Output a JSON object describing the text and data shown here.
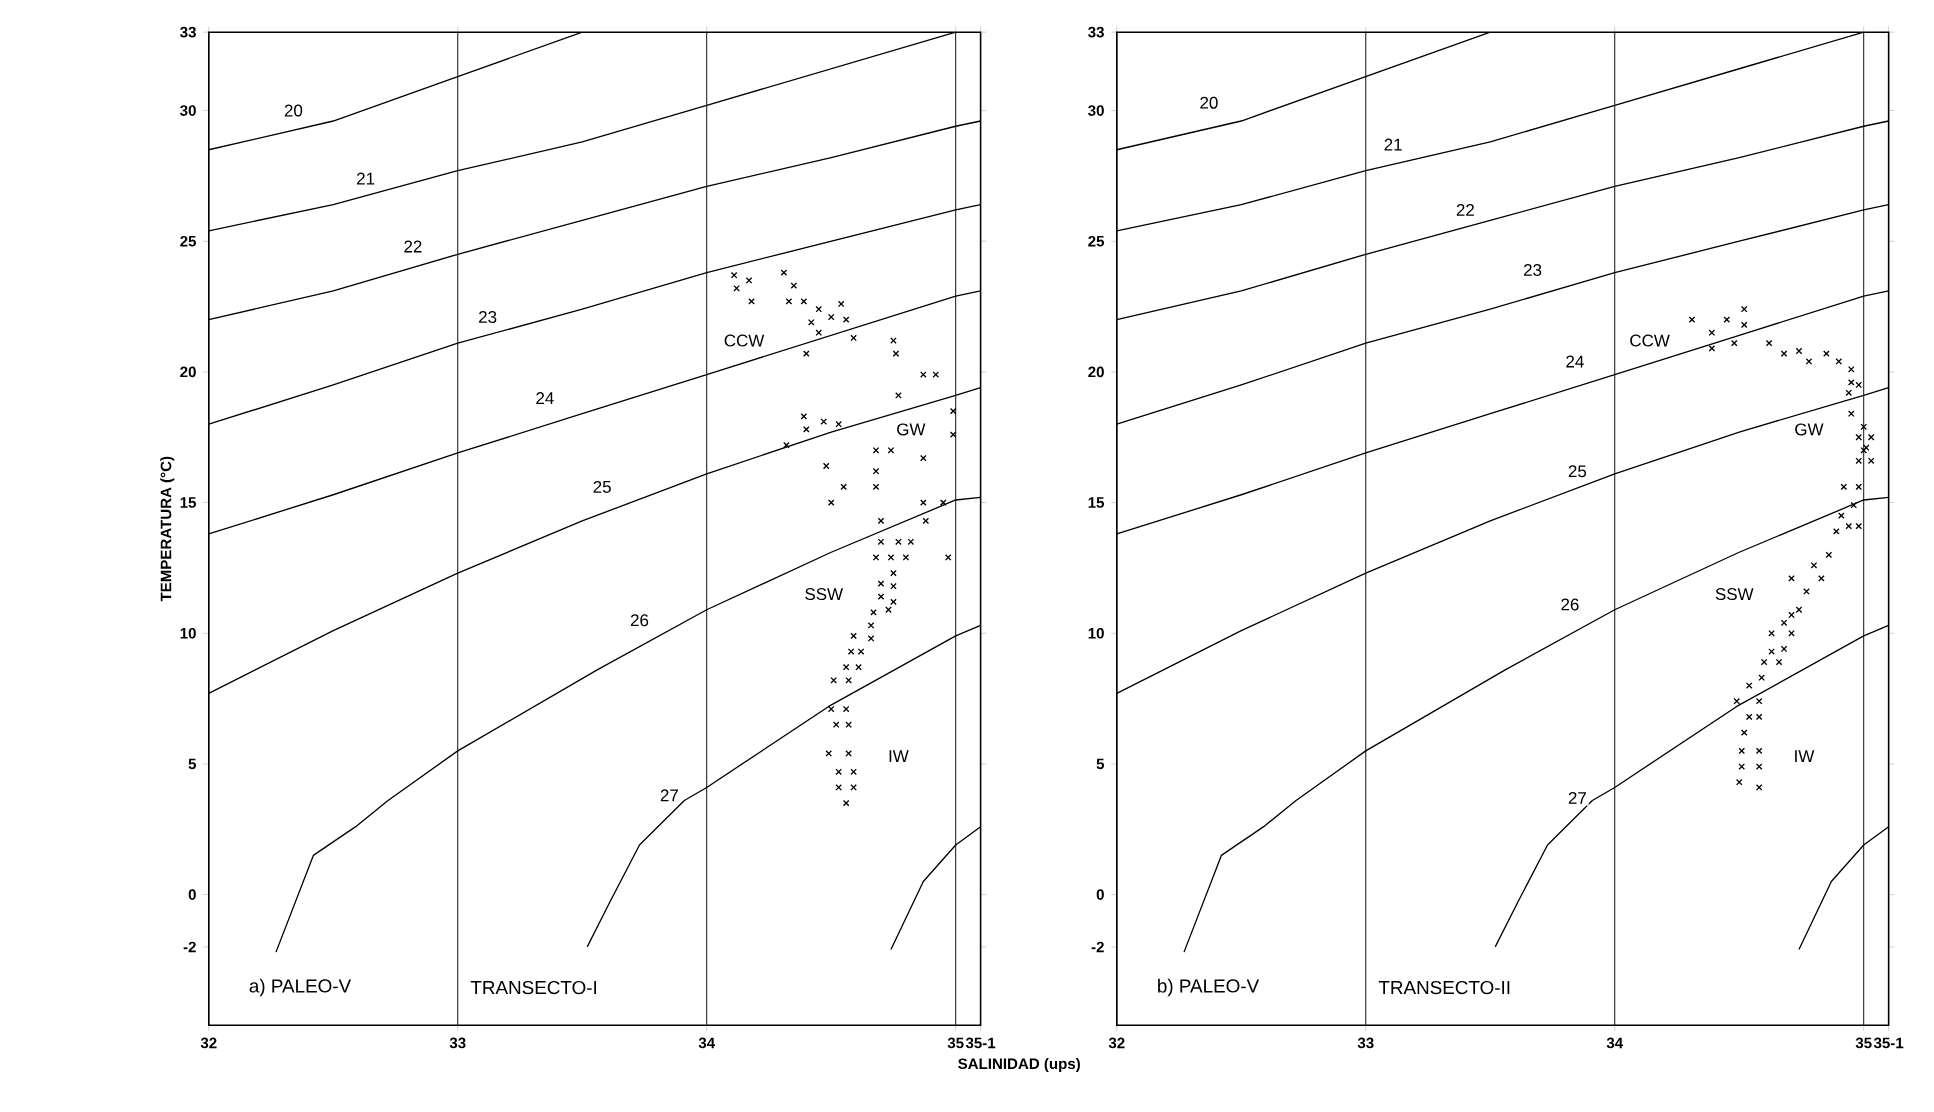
{
  "chart_data": [
    {
      "type": "scatter",
      "xlabel": "SALINIDAD (ups)",
      "ylabel": "TEMPERATURA (°C)",
      "xlim": [
        32,
        35.1
      ],
      "ylim": [
        -5,
        33
      ],
      "xticks": [
        32,
        33,
        34,
        35,
        {
          "value": 35.1,
          "label": "35-1"
        }
      ],
      "yticks": [
        -2,
        0,
        5,
        10,
        15,
        20,
        25,
        30,
        33
      ],
      "grid": "x",
      "series": [
        {
          "type": "line",
          "marker": "none",
          "color": "#000000",
          "x": [
            32,
            32.5,
            33,
            33.5
          ],
          "values": [
            28.5,
            29.6,
            31.3,
            33
          ]
        },
        {
          "type": "line",
          "marker": "none",
          "color": "#000000",
          "x": [
            32,
            32.5,
            33,
            33.5,
            34,
            34.5,
            35
          ],
          "values": [
            25.4,
            26.4,
            27.7,
            28.8,
            30.2,
            31.6,
            33
          ]
        },
        {
          "type": "line",
          "marker": "none",
          "color": "#000000",
          "x": [
            32,
            32.5,
            33,
            33.5,
            34,
            34.5,
            35,
            35.1
          ],
          "values": [
            22.0,
            23.1,
            24.5,
            25.8,
            27.1,
            28.2,
            29.4,
            29.6
          ]
        },
        {
          "type": "line",
          "marker": "none",
          "color": "#000000",
          "x": [
            32,
            32.5,
            33,
            33.5,
            34,
            34.5,
            35,
            35.1
          ],
          "values": [
            18.0,
            19.5,
            21.1,
            22.4,
            23.8,
            25.0,
            26.2,
            26.4
          ]
        },
        {
          "type": "line",
          "marker": "none",
          "color": "#000000",
          "x": [
            32,
            32.5,
            33,
            33.5,
            34,
            34.5,
            35,
            35.1
          ],
          "values": [
            13.8,
            15.3,
            16.9,
            18.4,
            19.9,
            21.4,
            22.9,
            23.1
          ]
        },
        {
          "type": "line",
          "marker": "none",
          "color": "#000000",
          "x": [
            32,
            32.5,
            33,
            33.5,
            34,
            34.5,
            35,
            35.1
          ],
          "values": [
            7.7,
            10.1,
            12.3,
            14.3,
            16.1,
            17.7,
            19.1,
            19.4
          ]
        },
        {
          "type": "line",
          "marker": "none",
          "color": "#000000",
          "x": [
            32.27,
            32.42,
            32.59,
            32.72,
            33,
            33.56,
            34,
            34.5,
            35,
            35.1
          ],
          "values": [
            -2.2,
            1.5,
            2.6,
            3.6,
            5.5,
            8.6,
            10.9,
            13.1,
            15.1,
            15.2
          ]
        },
        {
          "type": "line",
          "marker": "none",
          "color": "#000000",
          "x": [
            33.52,
            33.61,
            33.73,
            33.91,
            34,
            34.49,
            35,
            35.1
          ],
          "values": [
            -2.0,
            -0.3,
            1.9,
            3.6,
            4.1,
            7.2,
            9.9,
            10.3
          ]
        },
        {
          "type": "line",
          "marker": "none",
          "color": "#000000",
          "x": [
            34.74,
            34.87,
            35,
            35.1
          ],
          "values": [
            -2.1,
            0.5,
            1.9,
            2.6
          ]
        },
        {
          "marker": "cross",
          "color": "#000000",
          "x": [
            34.11,
            34.12,
            34.17,
            34.18,
            34.31,
            34.35,
            34.33,
            34.39,
            34.45,
            34.42,
            34.5,
            34.54,
            34.56,
            34.45,
            34.59,
            34.4,
            34.75,
            34.76,
            34.87,
            34.92,
            34.77,
            34.39,
            34.4,
            34.47,
            34.53,
            34.32,
            34.68,
            34.74,
            34.87,
            34.48,
            34.68,
            34.55,
            34.68,
            34.5,
            34.87,
            34.95,
            34.99,
            34.99,
            34.7,
            34.88,
            34.97,
            34.7,
            34.77,
            34.82,
            34.68,
            34.74,
            34.8,
            34.75,
            34.7,
            34.75,
            34.75,
            34.7,
            34.67,
            34.73,
            34.66,
            34.59,
            34.66,
            34.58,
            34.62,
            34.56,
            34.61,
            34.51,
            34.57,
            34.5,
            34.56,
            34.52,
            34.57,
            34.49,
            34.57,
            34.53,
            34.59,
            34.53,
            34.59,
            34.56
          ],
          "values": [
            23.7,
            23.2,
            23.5,
            22.7,
            23.8,
            23.3,
            22.7,
            22.7,
            22.4,
            21.9,
            22.1,
            22.6,
            22.0,
            21.5,
            21.3,
            20.7,
            21.2,
            20.7,
            19.9,
            19.9,
            19.1,
            18.3,
            17.8,
            18.1,
            18.0,
            17.2,
            17.0,
            17.0,
            16.7,
            16.4,
            16.2,
            15.6,
            15.6,
            15.0,
            15.0,
            15.0,
            18.5,
            17.6,
            14.3,
            14.3,
            12.9,
            13.5,
            13.5,
            13.5,
            12.9,
            12.9,
            12.9,
            12.3,
            11.9,
            11.8,
            11.2,
            11.4,
            10.8,
            10.9,
            10.3,
            9.9,
            9.8,
            9.3,
            9.3,
            8.7,
            8.7,
            8.2,
            8.2,
            7.1,
            7.1,
            6.5,
            6.5,
            5.4,
            5.4,
            4.7,
            4.7,
            4.1,
            4.1,
            3.5
          ]
        }
      ],
      "annotations": [
        {
          "text": "20",
          "x": 32.34,
          "y": 30.0
        },
        {
          "text": "21",
          "x": 32.63,
          "y": 27.4
        },
        {
          "text": "22",
          "x": 32.82,
          "y": 24.8
        },
        {
          "text": "23",
          "x": 33.12,
          "y": 22.1
        },
        {
          "text": "24",
          "x": 33.35,
          "y": 19.0
        },
        {
          "text": "25",
          "x": 33.58,
          "y": 15.6
        },
        {
          "text": "26",
          "x": 33.73,
          "y": 10.5
        },
        {
          "text": "27",
          "x": 33.85,
          "y": 3.8
        },
        {
          "text": "CCW",
          "x": 34.15,
          "y": 21.2
        },
        {
          "text": "GW",
          "x": 34.82,
          "y": 17.8
        },
        {
          "text": "SSW",
          "x": 34.47,
          "y": 11.5
        },
        {
          "text": "IW",
          "x": 34.77,
          "y": 5.3
        },
        "a) PALEO-V",
        "TRANSECTO-I"
      ]
    },
    {
      "type": "scatter",
      "xlim": [
        32,
        35.1
      ],
      "ylim": [
        -5,
        33
      ],
      "xticks": [
        32,
        33,
        34,
        35,
        {
          "value": 35.1,
          "label": "35-1"
        }
      ],
      "yticks": [
        -2,
        0,
        5,
        10,
        15,
        20,
        25,
        30,
        33
      ],
      "grid": "x",
      "series": [
        {
          "type": "line",
          "marker": "none",
          "color": "#000000",
          "x": [
            32,
            32.5,
            33,
            33.5
          ],
          "values": [
            28.5,
            29.6,
            31.3,
            33
          ]
        },
        {
          "type": "line",
          "marker": "none",
          "color": "#000000",
          "x": [
            32,
            32.5,
            33,
            33.5,
            34,
            34.5,
            35
          ],
          "values": [
            25.4,
            26.4,
            27.7,
            28.8,
            30.2,
            31.6,
            33
          ]
        },
        {
          "type": "line",
          "marker": "none",
          "color": "#000000",
          "x": [
            32,
            32.5,
            33,
            33.5,
            34,
            34.5,
            35,
            35.1
          ],
          "values": [
            22.0,
            23.1,
            24.5,
            25.8,
            27.1,
            28.2,
            29.4,
            29.6
          ]
        },
        {
          "type": "line",
          "marker": "none",
          "color": "#000000",
          "x": [
            32,
            32.5,
            33,
            33.5,
            34,
            34.5,
            35,
            35.1
          ],
          "values": [
            18.0,
            19.5,
            21.1,
            22.4,
            23.8,
            25.0,
            26.2,
            26.4
          ]
        },
        {
          "type": "line",
          "marker": "none",
          "color": "#000000",
          "x": [
            32,
            32.5,
            33,
            33.5,
            34,
            34.5,
            35,
            35.1
          ],
          "values": [
            13.8,
            15.3,
            16.9,
            18.4,
            19.9,
            21.4,
            22.9,
            23.1
          ]
        },
        {
          "type": "line",
          "marker": "none",
          "color": "#000000",
          "x": [
            32,
            32.5,
            33,
            33.5,
            34,
            34.5,
            35,
            35.1
          ],
          "values": [
            7.7,
            10.1,
            12.3,
            14.3,
            16.1,
            17.7,
            19.1,
            19.4
          ]
        },
        {
          "type": "line",
          "marker": "none",
          "color": "#000000",
          "x": [
            32.27,
            32.42,
            32.59,
            32.72,
            33,
            33.56,
            34,
            34.5,
            35,
            35.1
          ],
          "values": [
            -2.2,
            1.5,
            2.6,
            3.6,
            5.5,
            8.6,
            10.9,
            13.1,
            15.1,
            15.2
          ]
        },
        {
          "type": "line",
          "marker": "none",
          "color": "#000000",
          "x": [
            33.52,
            33.61,
            33.73,
            33.91,
            34,
            34.49,
            35,
            35.1
          ],
          "values": [
            -2.0,
            -0.3,
            1.9,
            3.6,
            4.1,
            7.2,
            9.9,
            10.3
          ]
        },
        {
          "type": "line",
          "marker": "none",
          "color": "#000000",
          "x": [
            34.74,
            34.87,
            35,
            35.1
          ],
          "values": [
            -2.1,
            0.5,
            1.9,
            2.6
          ]
        },
        {
          "marker": "cross",
          "color": "#000000",
          "x": [
            34.31,
            34.39,
            34.39,
            34.45,
            34.48,
            34.52,
            34.52,
            34.62,
            34.68,
            34.74,
            34.78,
            34.85,
            34.9,
            34.95,
            34.95,
            34.98,
            34.94,
            34.95,
            35.0,
            34.98,
            35.03,
            35.01,
            35.0,
            34.98,
            35.03,
            34.92,
            34.98,
            34.96,
            34.91,
            34.89,
            34.94,
            34.98,
            34.86,
            34.8,
            34.83,
            34.71,
            34.77,
            34.74,
            34.71,
            34.68,
            34.71,
            34.63,
            34.63,
            34.68,
            34.6,
            34.66,
            34.59,
            34.54,
            34.49,
            34.58,
            34.54,
            34.58,
            34.52,
            34.51,
            34.58,
            34.51,
            34.58,
            34.5,
            34.58
          ],
          "values": [
            22.0,
            21.5,
            20.9,
            22.0,
            21.1,
            22.4,
            21.8,
            21.1,
            20.7,
            20.8,
            20.4,
            20.7,
            20.4,
            20.1,
            19.6,
            19.5,
            19.2,
            18.4,
            17.9,
            17.5,
            17.5,
            17.1,
            17.0,
            16.6,
            16.6,
            15.6,
            15.6,
            14.9,
            14.5,
            13.9,
            14.1,
            14.1,
            13.0,
            12.6,
            12.1,
            12.1,
            11.6,
            10.9,
            10.7,
            10.4,
            10.0,
            10.0,
            9.3,
            9.4,
            8.9,
            8.9,
            8.3,
            8.0,
            7.4,
            7.4,
            6.8,
            6.8,
            6.2,
            5.5,
            5.5,
            4.9,
            4.9,
            4.3,
            4.1
          ]
        }
      ],
      "annotations": [
        {
          "text": "20",
          "x": 32.37,
          "y": 30.3
        },
        {
          "text": "21",
          "x": 33.11,
          "y": 28.7
        },
        {
          "text": "22",
          "x": 33.4,
          "y": 26.2
        },
        {
          "text": "23",
          "x": 33.67,
          "y": 23.9
        },
        {
          "text": "24",
          "x": 33.84,
          "y": 20.4
        },
        {
          "text": "25",
          "x": 33.85,
          "y": 16.2
        },
        {
          "text": "26",
          "x": 33.82,
          "y": 11.1
        },
        {
          "text": "27",
          "x": 33.85,
          "y": 3.7
        },
        {
          "text": "CCW",
          "x": 34.14,
          "y": 21.2
        },
        {
          "text": "GW",
          "x": 34.78,
          "y": 17.8
        },
        {
          "text": "SSW",
          "x": 34.48,
          "y": 11.5
        },
        {
          "text": "IW",
          "x": 34.76,
          "y": 5.3
        },
        "b) PALEO-V",
        "TRANSECTO-II"
      ]
    }
  ]
}
